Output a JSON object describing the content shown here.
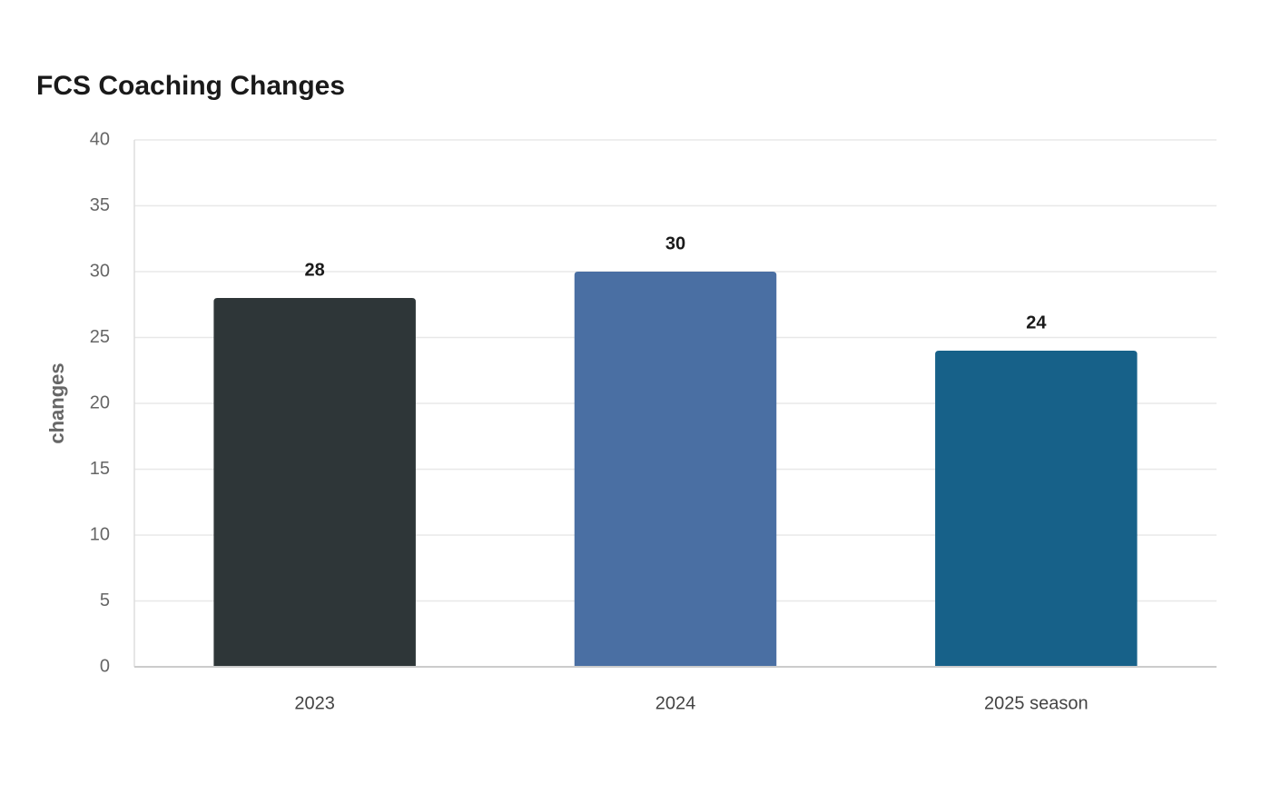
{
  "chart_data": {
    "type": "bar",
    "title": "FCS Coaching Changes",
    "y_label": "changes",
    "categories": [
      "2023",
      "2024",
      "2025 season"
    ],
    "values": [
      28,
      30,
      24
    ],
    "colors": [
      "#2e3638",
      "#4a6fa3",
      "#176189"
    ],
    "ylim": [
      0,
      40
    ],
    "yticks": [
      0,
      5,
      10,
      15,
      20,
      25,
      30,
      35,
      40
    ],
    "grid": true
  }
}
